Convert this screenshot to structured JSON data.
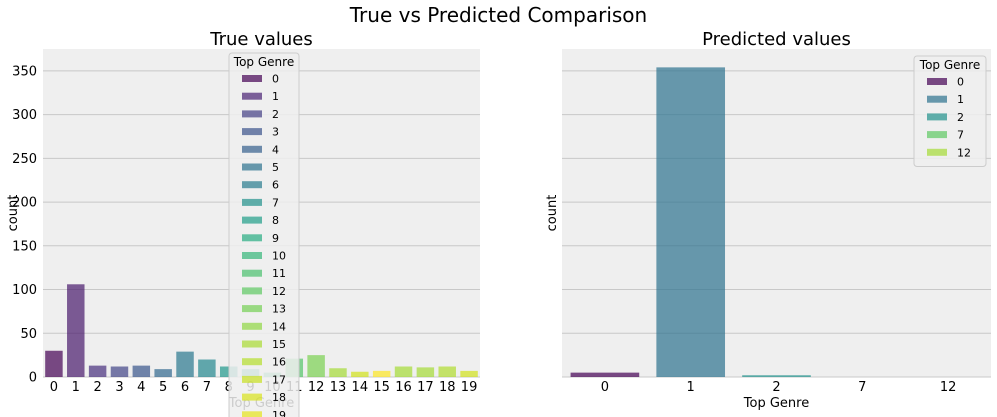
{
  "suptitle": "True vs Predicted Comparison",
  "colors": {
    "figure_bg": "#ffffff",
    "axes_bg": "#efefef",
    "grid": "#c8c8c8",
    "text": "#000000",
    "legend_bg": "#efefef",
    "legend_border": "#cccccc"
  },
  "chart_data": [
    {
      "type": "bar",
      "title": "True values",
      "xlabel": "Top Genre",
      "ylabel": "count",
      "ylim": [
        0,
        375
      ],
      "yticks": [
        0,
        50,
        100,
        150,
        200,
        250,
        300,
        350
      ],
      "grid": "y",
      "categories": [
        "0",
        "1",
        "2",
        "3",
        "4",
        "5",
        "6",
        "7",
        "8",
        "9",
        "10",
        "11",
        "12",
        "13",
        "14",
        "15",
        "16",
        "17",
        "18",
        "19"
      ],
      "values": [
        30,
        106,
        13,
        12,
        13,
        9,
        29,
        20,
        12,
        9,
        5,
        21,
        25,
        10,
        6,
        7,
        12,
        11,
        12,
        7
      ],
      "bar_colors": [
        "#440154",
        "#481a6c",
        "#472f7d",
        "#414487",
        "#39568c",
        "#31688e",
        "#2a788e",
        "#23888e",
        "#1f988b",
        "#22a884",
        "#35b779",
        "#54c568",
        "#7ad151",
        "#a5db36",
        "#d2e21b",
        "#fde725",
        "#a5db36",
        "#a5db36",
        "#b0dd2f",
        "#d2e21b"
      ],
      "legend": {
        "title": "Top Genre",
        "placement": "top-center",
        "labels": [
          "0",
          "1",
          "2",
          "3",
          "4",
          "5",
          "6",
          "7",
          "8",
          "9",
          "10",
          "11",
          "12",
          "13",
          "14",
          "15",
          "16",
          "17",
          "18",
          "19"
        ],
        "colors": [
          "#440154",
          "#482173",
          "#433e85",
          "#3b528b",
          "#355f8d",
          "#2c728e",
          "#287c8e",
          "#21918c",
          "#1f9e89",
          "#27ad81",
          "#35b779",
          "#4ac16d",
          "#5ec962",
          "#75d054",
          "#90d743",
          "#aadc32",
          "#b5de2b",
          "#c8e020",
          "#d8e219",
          "#e5e419"
        ]
      }
    },
    {
      "type": "bar",
      "title": "Predicted values",
      "xlabel": "Top Genre",
      "ylabel": "count",
      "ylim": [
        0,
        375
      ],
      "grid": "y",
      "categories": [
        "0",
        "1",
        "2",
        "7",
        "12"
      ],
      "values": [
        5,
        354,
        2,
        0,
        0
      ],
      "bar_colors": [
        "#440154",
        "#2c728e",
        "#21918c",
        "#5ec962",
        "#a5db36"
      ],
      "legend": {
        "title": "Top Genre",
        "placement": "top-right",
        "labels": [
          "0",
          "1",
          "2",
          "7",
          "12"
        ],
        "colors": [
          "#440154",
          "#2c728e",
          "#21918c",
          "#5ec962",
          "#a5db36"
        ]
      }
    }
  ]
}
